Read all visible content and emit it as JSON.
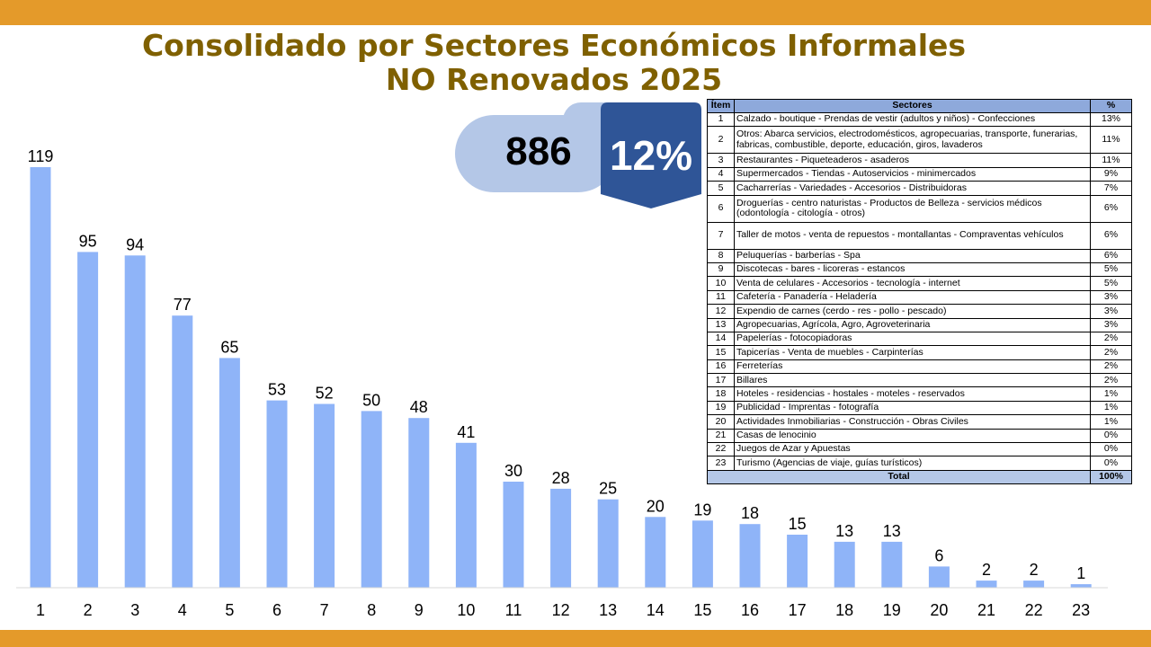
{
  "title": {
    "line1": "Consolidado por Sectores Económicos Informales",
    "line2": "NO Renovados 2025"
  },
  "kpi": {
    "count": "886",
    "percent": "12%"
  },
  "colors": {
    "band": "#E49A2A",
    "title": "#7F6000",
    "bar": "#8FB4F8",
    "kpi_light": "#B4C7E7",
    "kpi_dark": "#2F5597",
    "table_header": "#8EA9DB",
    "table_total": "#B4C7E7"
  },
  "table": {
    "headers": {
      "item": "Ítem",
      "sector": "Sectores",
      "pct": "%"
    },
    "rows": [
      {
        "item": "1",
        "sector": "Calzado - boutique - Prendas de vestir (adultos y niños) - Confecciones",
        "pct": "13%"
      },
      {
        "item": "2",
        "sector": "Otros: Abarca servicios, electrodomésticos, agropecuarias, transporte, funerarias, fabricas, combustible, deporte,  educación, giros, lavaderos",
        "pct": "11%"
      },
      {
        "item": "3",
        "sector": "Restaurantes - Piqueteaderos - asaderos",
        "pct": "11%"
      },
      {
        "item": "4",
        "sector": "Supermercados - Tiendas - Autoservicios - minimercados",
        "pct": "9%"
      },
      {
        "item": "5",
        "sector": "Cacharrerías - Variedades - Accesorios - Distribuidoras",
        "pct": "7%"
      },
      {
        "item": "6",
        "sector": "Droguerías - centro naturistas - Productos de Belleza - servicios médicos (odontología - citología - otros)",
        "pct": "6%"
      },
      {
        "item": "7",
        "sector": "Taller de motos - venta de repuestos - montallantas - Compraventas vehículos",
        "pct": "6%"
      },
      {
        "item": "8",
        "sector": "Peluquerías - barberías - Spa",
        "pct": "6%"
      },
      {
        "item": "9",
        "sector": "Discotecas - bares - licoreras - estancos",
        "pct": "5%"
      },
      {
        "item": "10",
        "sector": "Venta de celulares - Accesorios - tecnología - internet",
        "pct": "5%"
      },
      {
        "item": "11",
        "sector": "Cafetería - Panadería - Heladería",
        "pct": "3%"
      },
      {
        "item": "12",
        "sector": "Expendio de carnes (cerdo - res - pollo - pescado)",
        "pct": "3%"
      },
      {
        "item": "13",
        "sector": "Agropecuarias, Agrícola, Agro, Agroveterinaria",
        "pct": "3%"
      },
      {
        "item": "14",
        "sector": "Papelerías - fotocopiadoras",
        "pct": "2%"
      },
      {
        "item": "15",
        "sector": "Tapicerías - Venta de muebles - Carpinterías",
        "pct": "2%"
      },
      {
        "item": "16",
        "sector": "Ferreterías",
        "pct": "2%"
      },
      {
        "item": "17",
        "sector": "Billares",
        "pct": "2%"
      },
      {
        "item": "18",
        "sector": "Hoteles - residencias - hostales - moteles - reservados",
        "pct": "1%"
      },
      {
        "item": "19",
        "sector": "Publicidad - Imprentas - fotografía",
        "pct": "1%"
      },
      {
        "item": "20",
        "sector": "Actividades Inmobiliarias - Construcción - Obras Civiles",
        "pct": "1%"
      },
      {
        "item": "21",
        "sector": "Casas de lenocinio",
        "pct": "0%"
      },
      {
        "item": "22",
        "sector": "Juegos de Azar y Apuestas",
        "pct": "0%"
      },
      {
        "item": "23",
        "sector": "Turismo (Agencias de viaje, guías turísticos)",
        "pct": "0%"
      }
    ],
    "total": {
      "label": "Total",
      "pct": "100%"
    }
  },
  "chart_data": {
    "type": "bar",
    "title": "Consolidado por Sectores Económicos Informales NO Renovados 2025",
    "categories": [
      "1",
      "2",
      "3",
      "4",
      "5",
      "6",
      "7",
      "8",
      "9",
      "10",
      "11",
      "12",
      "13",
      "14",
      "15",
      "16",
      "17",
      "18",
      "19",
      "20",
      "21",
      "22",
      "23"
    ],
    "values": [
      119,
      95,
      94,
      77,
      65,
      53,
      52,
      50,
      48,
      41,
      30,
      28,
      25,
      20,
      19,
      18,
      15,
      13,
      13,
      6,
      2,
      2,
      1
    ],
    "data_labels": [
      "119",
      "95",
      "94",
      "77",
      "65",
      "53",
      "52",
      "50",
      "48",
      "41",
      "30",
      "28",
      "25",
      "20",
      "19",
      "18",
      "15",
      "13",
      "13",
      "6",
      "2",
      "2",
      "1"
    ],
    "xlabel": "",
    "ylabel": "",
    "ylim": [
      0,
      119
    ],
    "grid": false,
    "legend": "none"
  }
}
